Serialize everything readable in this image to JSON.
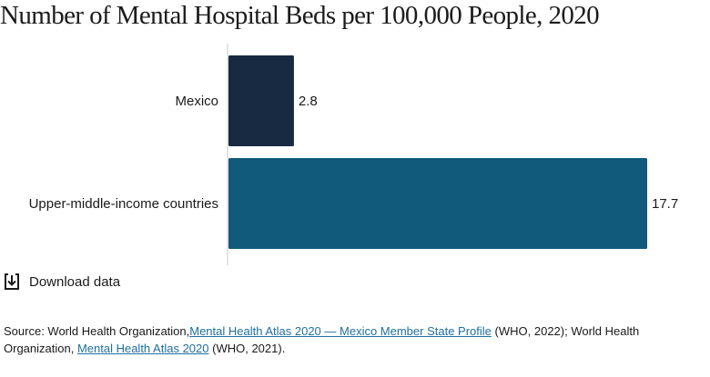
{
  "title": "Number of Mental Hospital Beds per 100,000 People, 2020",
  "download": {
    "label": "Download data",
    "icon": "download-icon"
  },
  "source": {
    "prefix": "Source: World Health Organization,",
    "link1": "Mental Health Atlas 2020 — Mexico Member State Profile",
    "middle": "(WHO, 2022); World Health Organization,",
    "link2": "Mental Health Atlas 2020",
    "suffix": "(WHO, 2021)."
  },
  "chart_data": {
    "type": "bar",
    "orientation": "horizontal",
    "title": "Number of Mental Hospital Beds per 100,000 People, 2020",
    "categories": [
      "Mexico",
      "Upper-middle-income countries"
    ],
    "values": [
      2.8,
      17.7
    ],
    "value_labels": [
      "2.8",
      "17.7"
    ],
    "colors": [
      "#172a41",
      "#125a7c"
    ],
    "xlim": [
      0,
      17.7
    ],
    "grid": false,
    "legend": "none"
  }
}
